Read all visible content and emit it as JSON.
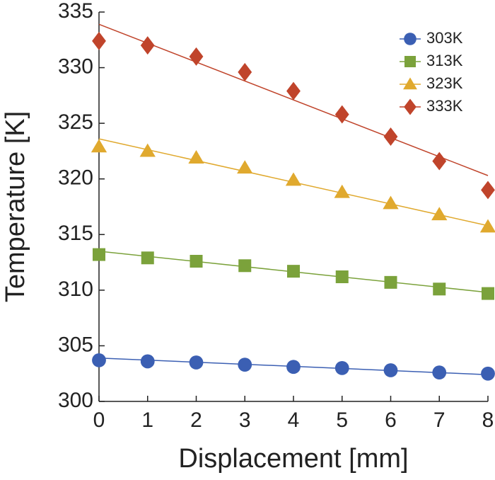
{
  "chart_data": {
    "type": "scatter",
    "x_label": "Displacement [mm]",
    "y_label": "Temperature [K]",
    "x": [
      0,
      1,
      2,
      3,
      4,
      5,
      6,
      7,
      8
    ],
    "xlim": [
      0,
      8
    ],
    "xticks": [
      0,
      1,
      2,
      3,
      4,
      5,
      6,
      7,
      8
    ],
    "ylim": [
      300,
      335
    ],
    "yticks": [
      300,
      305,
      310,
      315,
      320,
      325,
      330,
      335
    ],
    "legend": "upper right",
    "series": [
      {
        "name": "303K",
        "color": "#3b5fb3",
        "marker": "circle",
        "values": [
          303.7,
          303.6,
          303.5,
          303.3,
          303.1,
          303.0,
          302.8,
          302.6,
          302.5
        ],
        "fit": [
          303.9,
          302.4
        ]
      },
      {
        "name": "313K",
        "color": "#7ba23b",
        "marker": "square",
        "values": [
          313.2,
          312.9,
          312.6,
          312.2,
          311.7,
          311.2,
          310.7,
          310.1,
          309.7
        ],
        "fit": [
          313.5,
          309.8
        ]
      },
      {
        "name": "323K",
        "color": "#e0a92e",
        "marker": "triangle",
        "values": [
          322.9,
          322.5,
          321.9,
          321.0,
          319.9,
          318.8,
          317.8,
          316.8,
          315.7
        ],
        "fit": [
          323.6,
          315.8
        ]
      },
      {
        "name": "333K",
        "color": "#c0442b",
        "marker": "diamond",
        "values": [
          332.4,
          332.0,
          331.0,
          329.6,
          327.9,
          325.8,
          323.8,
          321.6,
          319.0
        ],
        "fit": [
          333.9,
          320.3
        ]
      }
    ]
  }
}
